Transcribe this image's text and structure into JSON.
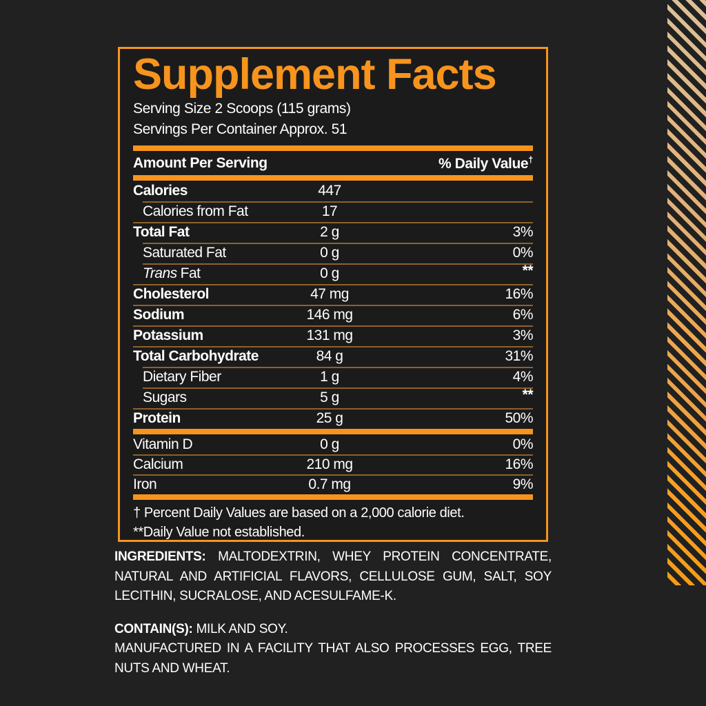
{
  "label": {
    "title": "Supplement Facts",
    "serving_size": "Serving Size 2 Scoops (115 grams)",
    "servings_per_container": "Servings Per Container Approx. 51",
    "header": {
      "amount_per_serving": "Amount Per Serving",
      "daily_value": "% Daily Value",
      "daily_value_sup": "†"
    },
    "rows": [
      {
        "name": "Calories",
        "amount": "447",
        "dv": ""
      },
      {
        "name": "Calories from Fat",
        "amount": "17",
        "dv": ""
      },
      {
        "name": "Total Fat",
        "amount": "2 g",
        "dv": "3%"
      },
      {
        "name": "Saturated Fat",
        "amount": "0 g",
        "dv": "0%"
      },
      {
        "name_italic": "Trans",
        "name": "Fat",
        "amount": "0 g",
        "dv": "**"
      },
      {
        "name": "Cholesterol",
        "amount": "47 mg",
        "dv": "16%"
      },
      {
        "name": "Sodium",
        "amount": "146 mg",
        "dv": "6%"
      },
      {
        "name": "Potassium",
        "amount": "131 mg",
        "dv": "3%"
      },
      {
        "name": "Total Carbohydrate",
        "amount": "84 g",
        "dv": "31%"
      },
      {
        "name": "Dietary Fiber",
        "amount": "1 g",
        "dv": "4%"
      },
      {
        "name": "Sugars",
        "amount": "5 g",
        "dv": "**"
      },
      {
        "name": "Protein",
        "amount": "25 g",
        "dv": "50%"
      },
      {
        "name": "Vitamin D",
        "amount": "0 g",
        "dv": "0%"
      },
      {
        "name": "Calcium",
        "amount": "210 mg",
        "dv": "16%"
      },
      {
        "name": "Iron",
        "amount": "0.7 mg",
        "dv": "9%"
      }
    ],
    "footnotes": [
      "† Percent Daily Values are based on a 2,000 calorie diet.",
      "**Daily Value not established."
    ]
  },
  "bottom": {
    "ingredients_label": "INGREDIENTS:",
    "ingredients_text": "MALTODEXTRIN, WHEY PROTEIN CONCENTRATE, NATURAL AND ARTIFICIAL FLAVORS, CELLULOSE GUM, SALT, SOY LECITHIN, SUCRALOSE, AND ACESULFAME-K.",
    "contains_label": "CONTAIN(S):",
    "contains_text": "MILK AND SOY.",
    "manufactured_text": "MANUFACTURED IN A FACILITY THAT ALSO PROCESSES EGG, TREE NUTS AND WHEAT."
  },
  "colors": {
    "accent_orange": "#F7941E",
    "thin_divider": "#8F612C",
    "background": "#212121",
    "panel_background": "#1B1B1B",
    "text": "#FFFFFF",
    "stripe_top": "#DCC096",
    "stripe_bottom": "#F89C13"
  }
}
